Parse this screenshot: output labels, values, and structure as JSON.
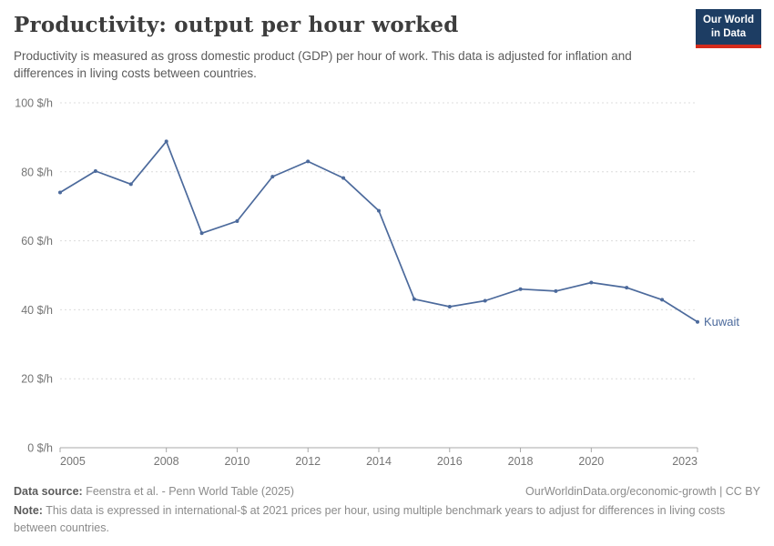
{
  "header": {
    "title": "Productivity: output per hour worked",
    "subtitle": "Productivity is measured as gross domestic product (GDP) per hour of work. This data is adjusted for inflation and differences in living costs between countries.",
    "logo": {
      "line1": "Our World",
      "line2": "in Data",
      "bg_color": "#1d3d63",
      "accent_color": "#d42b1c"
    }
  },
  "chart_data": {
    "type": "line",
    "title": "Productivity: output per hour worked",
    "x": [
      2005,
      2006,
      2007,
      2008,
      2009,
      2010,
      2011,
      2012,
      2013,
      2014,
      2015,
      2016,
      2017,
      2018,
      2019,
      2020,
      2021,
      2022,
      2023
    ],
    "series": [
      {
        "name": "Kuwait",
        "color": "#4c6a9c",
        "values": [
          74.0,
          80.2,
          76.4,
          88.8,
          62.2,
          65.7,
          78.6,
          83.0,
          78.2,
          68.7,
          43.1,
          40.9,
          42.6,
          46.0,
          45.4,
          47.9,
          46.4,
          42.9,
          36.5
        ]
      }
    ],
    "xlabel": "",
    "ylabel": "",
    "ylim": [
      0,
      100
    ],
    "yticks": [
      0,
      20,
      40,
      60,
      80,
      100
    ],
    "ytick_suffix": " $/h",
    "xticks": [
      2005,
      2008,
      2010,
      2012,
      2014,
      2016,
      2018,
      2020,
      2023
    ],
    "grid": "horizontal-dashed",
    "legend": "end-of-line-label",
    "colors": {
      "grid": "#dcdcdc",
      "axis": "#a8a8a8",
      "tick_label": "#757575"
    }
  },
  "footer": {
    "datasource_label": "Data source:",
    "datasource_value": " Feenstra et al. - Penn World Table (2025)",
    "link": "OurWorldinData.org/economic-growth | CC BY",
    "note_label": "Note:",
    "note_value": " This data is expressed in international-$ at 2021 prices per hour, using multiple benchmark years to adjust for differences in living costs between countries."
  }
}
